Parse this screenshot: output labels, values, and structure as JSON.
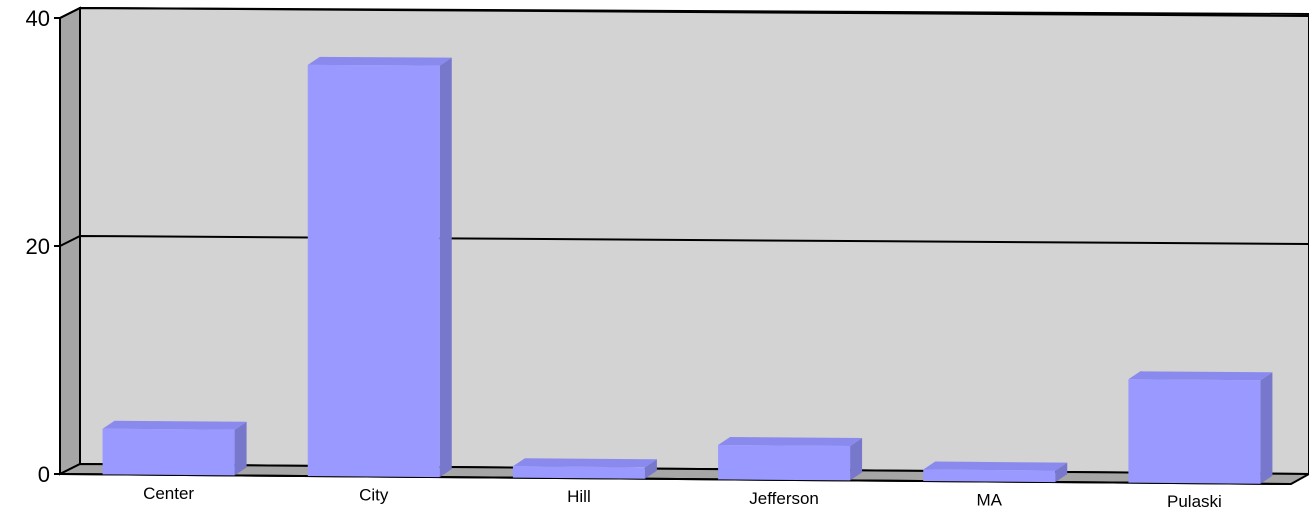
{
  "chart_data": {
    "type": "bar",
    "title": "",
    "xlabel": "",
    "ylabel": "",
    "categories": [
      "Center",
      "City",
      "Hill",
      "Jefferson",
      "MA",
      "Pulaski"
    ],
    "values": [
      4,
      36,
      1,
      3,
      1,
      9
    ],
    "ylim": [
      0,
      40
    ],
    "yticks": [
      0,
      20,
      40
    ],
    "grid": true,
    "legend": "none",
    "style": "3d",
    "colors": {
      "bar_front": "#9999ff",
      "bar_top": "#8a8aee",
      "bar_side": "#7777cc",
      "plot_back": "#d3d3d3",
      "plot_left_wall": "#a6a6a6",
      "plot_floor": "#a6a6a6",
      "axis_line": "#000000"
    }
  }
}
